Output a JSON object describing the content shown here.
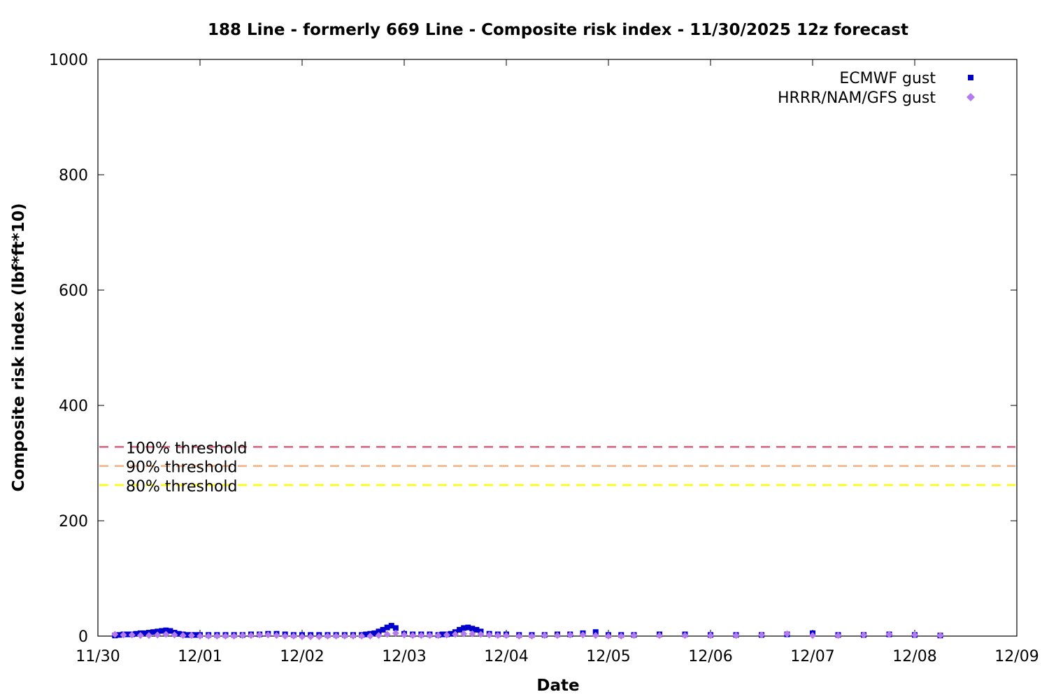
{
  "chart_data": {
    "type": "scatter",
    "title": "188 Line - formerly 669 Line - Composite risk index - 11/30/2025 12z forecast",
    "xlabel": "Date",
    "ylabel": "Composite risk index (lbf*ft*10)",
    "xlim": [
      "2025-11-30 00:00",
      "2025-12-09 00:00"
    ],
    "ylim": [
      0,
      1000
    ],
    "x_ticks": [
      "11/30",
      "12/01",
      "12/02",
      "12/03",
      "12/04",
      "12/05",
      "12/06",
      "12/07",
      "12/08",
      "12/09"
    ],
    "y_ticks": [
      "0",
      "200",
      "400",
      "600",
      "800",
      "1000"
    ],
    "grid": false,
    "legend_position": "top-right",
    "thresholds": [
      {
        "label": "100% threshold",
        "value": 328,
        "color": "#d95f7a"
      },
      {
        "label": "90% threshold",
        "value": 295,
        "color": "#f4b183"
      },
      {
        "label": "80% threshold",
        "value": 262,
        "color": "#ffff00"
      }
    ],
    "series": [
      {
        "name": "ECMWF gust",
        "color": "#0000cc",
        "marker": "square",
        "x": [
          "11/30 04:00",
          "11/30 05:00",
          "11/30 06:00",
          "11/30 07:00",
          "11/30 08:00",
          "11/30 09:00",
          "11/30 10:00",
          "11/30 11:00",
          "11/30 12:00",
          "11/30 13:00",
          "11/30 14:00",
          "11/30 15:00",
          "11/30 16:00",
          "11/30 17:00",
          "11/30 18:00",
          "11/30 19:00",
          "11/30 20:00",
          "11/30 21:00",
          "11/30 22:00",
          "11/30 23:00",
          "12/01 00:00",
          "12/01 02:00",
          "12/01 04:00",
          "12/01 06:00",
          "12/01 08:00",
          "12/01 10:00",
          "12/01 12:00",
          "12/01 14:00",
          "12/01 16:00",
          "12/01 18:00",
          "12/01 20:00",
          "12/01 22:00",
          "12/02 00:00",
          "12/02 02:00",
          "12/02 04:00",
          "12/02 06:00",
          "12/02 08:00",
          "12/02 10:00",
          "12/02 12:00",
          "12/02 14:00",
          "12/02 15:00",
          "12/02 16:00",
          "12/02 17:00",
          "12/02 18:00",
          "12/02 19:00",
          "12/02 20:00",
          "12/02 21:00",
          "12/02 22:00",
          "12/03 00:00",
          "12/03 02:00",
          "12/03 04:00",
          "12/03 06:00",
          "12/03 08:00",
          "12/03 09:00",
          "12/03 10:00",
          "12/03 11:00",
          "12/03 12:00",
          "12/03 13:00",
          "12/03 14:00",
          "12/03 15:00",
          "12/03 16:00",
          "12/03 17:00",
          "12/03 18:00",
          "12/03 20:00",
          "12/03 22:00",
          "12/04 00:00",
          "12/04 03:00",
          "12/04 06:00",
          "12/04 09:00",
          "12/04 12:00",
          "12/04 15:00",
          "12/04 18:00",
          "12/04 21:00",
          "12/05 00:00",
          "12/05 03:00",
          "12/05 06:00",
          "12/05 12:00",
          "12/05 18:00",
          "12/06 00:00",
          "12/06 06:00",
          "12/06 12:00",
          "12/06 18:00",
          "12/07 00:00",
          "12/07 06:00",
          "12/07 12:00",
          "12/07 18:00",
          "12/08 00:00",
          "12/08 06:00"
        ],
        "y": [
          1,
          2,
          3,
          3,
          3,
          4,
          5,
          5,
          6,
          7,
          8,
          9,
          10,
          9,
          6,
          4,
          3,
          2,
          2,
          2,
          2,
          2,
          2,
          2,
          2,
          2,
          3,
          3,
          4,
          4,
          3,
          2,
          2,
          2,
          2,
          2,
          2,
          2,
          2,
          2,
          3,
          4,
          5,
          8,
          11,
          15,
          18,
          14,
          4,
          3,
          3,
          3,
          2,
          3,
          3,
          4,
          7,
          11,
          14,
          15,
          13,
          11,
          8,
          4,
          3,
          3,
          2,
          2,
          2,
          3,
          3,
          5,
          7,
          2,
          2,
          2,
          3,
          3,
          2,
          2,
          2,
          3,
          5,
          2,
          2,
          3,
          2,
          1
        ]
      },
      {
        "name": "HRRR/NAM/GFS gust",
        "color": "#b57aed",
        "marker": "diamond",
        "x": [
          "11/30 04:00",
          "11/30 06:00",
          "11/30 08:00",
          "11/30 10:00",
          "11/30 12:00",
          "11/30 14:00",
          "11/30 16:00",
          "11/30 18:00",
          "11/30 20:00",
          "11/30 22:00",
          "12/01 00:00",
          "12/01 02:00",
          "12/01 04:00",
          "12/01 06:00",
          "12/01 08:00",
          "12/01 10:00",
          "12/01 12:00",
          "12/01 14:00",
          "12/01 16:00",
          "12/01 18:00",
          "12/01 20:00",
          "12/01 22:00",
          "12/02 00:00",
          "12/02 02:00",
          "12/02 04:00",
          "12/02 06:00",
          "12/02 08:00",
          "12/02 10:00",
          "12/02 12:00",
          "12/02 14:00",
          "12/02 16:00",
          "12/02 18:00",
          "12/02 20:00",
          "12/02 22:00",
          "12/03 00:00",
          "12/03 02:00",
          "12/03 04:00",
          "12/03 06:00",
          "12/03 08:00",
          "12/03 10:00",
          "12/03 12:00",
          "12/03 14:00",
          "12/03 16:00",
          "12/03 18:00",
          "12/03 20:00",
          "12/03 22:00",
          "12/04 00:00",
          "12/04 03:00",
          "12/04 06:00",
          "12/04 09:00",
          "12/04 12:00",
          "12/04 15:00",
          "12/04 18:00",
          "12/04 21:00",
          "12/05 00:00",
          "12/05 03:00",
          "12/05 06:00",
          "12/05 12:00",
          "12/05 18:00",
          "12/06 00:00",
          "12/06 06:00",
          "12/06 12:00",
          "12/06 18:00",
          "12/07 00:00",
          "12/07 06:00",
          "12/07 12:00",
          "12/07 18:00",
          "12/08 00:00",
          "12/08 06:00"
        ],
        "y": [
          3,
          2,
          2,
          1,
          1,
          2,
          3,
          2,
          1,
          1,
          0,
          0,
          0,
          0,
          0,
          1,
          1,
          2,
          2,
          1,
          0,
          0,
          -1,
          -1,
          -1,
          0,
          0,
          0,
          0,
          0,
          0,
          1,
          3,
          5,
          2,
          1,
          1,
          1,
          1,
          2,
          3,
          4,
          4,
          3,
          2,
          1,
          1,
          0,
          0,
          1,
          1,
          2,
          2,
          1,
          0,
          0,
          1,
          1,
          1,
          1,
          1,
          2,
          4,
          1,
          1,
          2,
          3,
          2,
          1
        ]
      }
    ]
  }
}
